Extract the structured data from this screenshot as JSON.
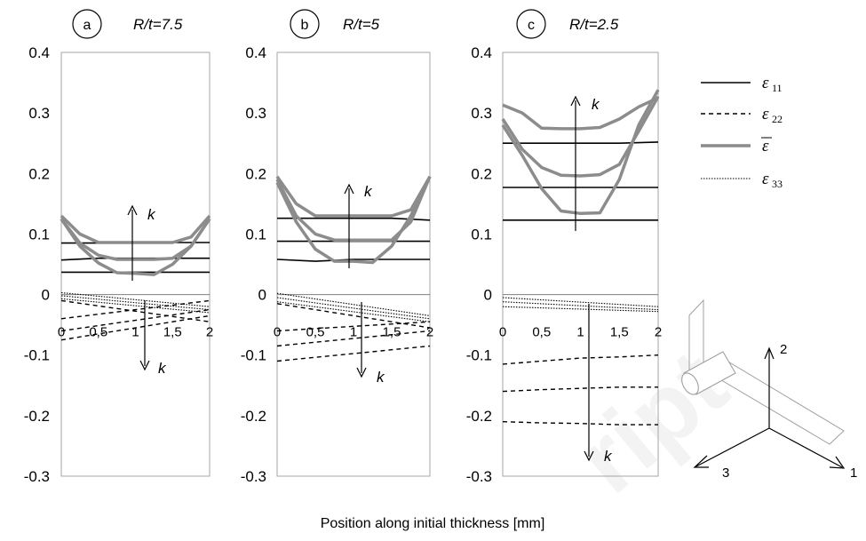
{
  "chart_data": [
    {
      "type": "line",
      "letter": "a",
      "title": "R/t=7.5",
      "xticks": [
        "0",
        "0,5",
        "1",
        "1,5",
        "2"
      ],
      "yticks": [
        "0.4",
        "0.3",
        "0.2",
        "0.1",
        "0",
        "-0.1",
        "-0.2",
        "-0.3"
      ],
      "xlim": [
        0,
        2
      ],
      "ylim": [
        -0.3,
        0.4
      ],
      "k_label": "k",
      "series": [
        {
          "name": "ε11",
          "x": [
            0,
            0.5,
            1,
            1.5,
            2
          ],
          "values": [
            0.085,
            0.085,
            0.085,
            0.086,
            0.086
          ]
        },
        {
          "name": "ε11",
          "x": [
            0,
            0.5,
            1,
            1.5,
            2
          ],
          "values": [
            0.057,
            0.06,
            0.06,
            0.06,
            0.06
          ]
        },
        {
          "name": "ε11",
          "x": [
            0,
            0.5,
            1,
            1.5,
            2
          ],
          "values": [
            0.037,
            0.037,
            0.037,
            0.037,
            0.037
          ]
        },
        {
          "name": "ε̄",
          "x": [
            0,
            0.25,
            0.5,
            0.75,
            1,
            1.25,
            1.5,
            1.75,
            2
          ],
          "values": [
            0.13,
            0.1,
            0.086,
            0.086,
            0.086,
            0.086,
            0.086,
            0.095,
            0.13
          ]
        },
        {
          "name": "ε̄",
          "x": [
            0,
            0.25,
            0.5,
            0.75,
            1,
            1.25,
            1.5,
            1.75,
            2
          ],
          "values": [
            0.125,
            0.085,
            0.065,
            0.058,
            0.058,
            0.058,
            0.06,
            0.08,
            0.125
          ]
        },
        {
          "name": "ε̄",
          "x": [
            0,
            0.25,
            0.5,
            0.75,
            1,
            1.25,
            1.5,
            1.75,
            2
          ],
          "values": [
            0.125,
            0.08,
            0.052,
            0.036,
            0.035,
            0.033,
            0.05,
            0.08,
            0.125
          ]
        },
        {
          "name": "ε22",
          "x": [
            0,
            2
          ],
          "values": [
            -0.01,
            -0.045
          ]
        },
        {
          "name": "ε22",
          "x": [
            0,
            2
          ],
          "values": [
            -0.04,
            -0.01
          ]
        },
        {
          "name": "ε22",
          "x": [
            0,
            2
          ],
          "values": [
            -0.06,
            -0.025
          ]
        },
        {
          "name": "ε22",
          "x": [
            0,
            2
          ],
          "values": [
            -0.075,
            -0.035
          ]
        },
        {
          "name": "ε33",
          "x": [
            0,
            2
          ],
          "values": [
            0.003,
            -0.02
          ]
        },
        {
          "name": "ε33",
          "x": [
            0,
            2
          ],
          "values": [
            -0.002,
            -0.025
          ]
        },
        {
          "name": "ε33",
          "x": [
            0,
            2
          ],
          "values": [
            -0.007,
            -0.03
          ]
        }
      ]
    },
    {
      "type": "line",
      "letter": "b",
      "title": "R/t=5",
      "xticks": [
        "0",
        "0,5",
        "1",
        "1,5",
        "2"
      ],
      "yticks": [
        "0.4",
        "0.3",
        "0.2",
        "0.1",
        "0",
        "-0.1",
        "-0.2",
        "-0.3"
      ],
      "xlim": [
        0,
        2
      ],
      "ylim": [
        -0.3,
        0.4
      ],
      "k_label": "k",
      "series": [
        {
          "name": "ε11",
          "x": [
            0,
            0.5,
            1,
            1.5,
            2
          ],
          "values": [
            0.126,
            0.126,
            0.126,
            0.126,
            0.123
          ]
        },
        {
          "name": "ε11",
          "x": [
            0,
            0.5,
            1,
            1.5,
            2
          ],
          "values": [
            0.088,
            0.088,
            0.088,
            0.088,
            0.088
          ]
        },
        {
          "name": "ε11",
          "x": [
            0,
            0.5,
            1,
            1.5,
            2
          ],
          "values": [
            0.058,
            0.055,
            0.058,
            0.058,
            0.058
          ]
        },
        {
          "name": "ε̄",
          "x": [
            0,
            0.25,
            0.5,
            0.75,
            1,
            1.25,
            1.5,
            1.75,
            2
          ],
          "values": [
            0.195,
            0.15,
            0.13,
            0.13,
            0.13,
            0.13,
            0.13,
            0.14,
            0.195
          ]
        },
        {
          "name": "ε̄",
          "x": [
            0,
            0.25,
            0.5,
            0.75,
            1,
            1.25,
            1.5,
            1.75,
            2
          ],
          "values": [
            0.19,
            0.13,
            0.1,
            0.09,
            0.09,
            0.09,
            0.09,
            0.12,
            0.195
          ]
        },
        {
          "name": "ε̄",
          "x": [
            0,
            0.25,
            0.5,
            0.75,
            1,
            1.25,
            1.5,
            1.75,
            2
          ],
          "values": [
            0.185,
            0.12,
            0.075,
            0.055,
            0.055,
            0.053,
            0.08,
            0.13,
            0.195
          ]
        },
        {
          "name": "ε22",
          "x": [
            0,
            2
          ],
          "values": [
            -0.015,
            -0.055
          ]
        },
        {
          "name": "ε22",
          "x": [
            0,
            2
          ],
          "values": [
            -0.06,
            -0.045
          ]
        },
        {
          "name": "ε22",
          "x": [
            0,
            2
          ],
          "values": [
            -0.085,
            -0.06
          ]
        },
        {
          "name": "ε22",
          "x": [
            0,
            2
          ],
          "values": [
            -0.11,
            -0.085
          ]
        },
        {
          "name": "ε33",
          "x": [
            0,
            2
          ],
          "values": [
            0.002,
            -0.035
          ]
        },
        {
          "name": "ε33",
          "x": [
            0,
            2
          ],
          "values": [
            -0.005,
            -0.04
          ]
        },
        {
          "name": "ε33",
          "x": [
            0,
            2
          ],
          "values": [
            -0.012,
            -0.045
          ]
        }
      ]
    },
    {
      "type": "line",
      "letter": "c",
      "title": "R/t=2.5",
      "xticks": [
        "0",
        "0,5",
        "1",
        "1,5",
        "2"
      ],
      "yticks": [
        "0.4",
        "0.3",
        "0.2",
        "0.1",
        "0",
        "-0.1",
        "-0.2",
        "-0.3"
      ],
      "xlim": [
        0,
        2
      ],
      "ylim": [
        -0.3,
        0.4
      ],
      "k_label": "k",
      "series": [
        {
          "name": "ε11",
          "x": [
            0,
            0.5,
            1,
            1.5,
            2
          ],
          "values": [
            0.25,
            0.25,
            0.25,
            0.25,
            0.252
          ]
        },
        {
          "name": "ε11",
          "x": [
            0,
            0.5,
            1,
            1.5,
            2
          ],
          "values": [
            0.177,
            0.177,
            0.177,
            0.177,
            0.177
          ]
        },
        {
          "name": "ε11",
          "x": [
            0,
            0.5,
            1,
            1.5,
            2
          ],
          "values": [
            0.123,
            0.123,
            0.123,
            0.123,
            0.123
          ]
        },
        {
          "name": "ε̄",
          "x": [
            0,
            0.25,
            0.5,
            0.75,
            1,
            1.25,
            1.5,
            1.75,
            2
          ],
          "values": [
            0.313,
            0.3,
            0.275,
            0.274,
            0.274,
            0.276,
            0.29,
            0.31,
            0.325
          ]
        },
        {
          "name": "ε̄",
          "x": [
            0,
            0.25,
            0.5,
            0.75,
            1,
            1.25,
            1.5,
            1.75,
            2
          ],
          "values": [
            0.29,
            0.24,
            0.21,
            0.197,
            0.196,
            0.198,
            0.215,
            0.27,
            0.327
          ]
        },
        {
          "name": "ε̄",
          "x": [
            0,
            0.25,
            0.5,
            0.75,
            1,
            1.25,
            1.5,
            1.75,
            2
          ],
          "values": [
            0.28,
            0.23,
            0.175,
            0.138,
            0.134,
            0.135,
            0.19,
            0.28,
            0.338
          ]
        },
        {
          "name": "ε22",
          "x": [
            0,
            0.5,
            1,
            1.5,
            2
          ],
          "values": [
            -0.115,
            -0.11,
            -0.105,
            -0.103,
            -0.1
          ]
        },
        {
          "name": "ε22",
          "x": [
            0,
            0.5,
            1,
            1.5,
            2
          ],
          "values": [
            -0.16,
            -0.157,
            -0.155,
            -0.153,
            -0.153
          ]
        },
        {
          "name": "ε22",
          "x": [
            0,
            0.5,
            1,
            1.5,
            2
          ],
          "values": [
            -0.21,
            -0.212,
            -0.213,
            -0.215,
            -0.215
          ]
        },
        {
          "name": "ε33",
          "x": [
            0,
            2
          ],
          "values": [
            -0.005,
            -0.02
          ]
        },
        {
          "name": "ε33",
          "x": [
            0,
            2
          ],
          "values": [
            -0.012,
            -0.025
          ]
        },
        {
          "name": "ε33",
          "x": [
            0,
            2
          ],
          "values": [
            -0.02,
            -0.028
          ]
        }
      ]
    }
  ],
  "legend": {
    "items": [
      {
        "symbol": "ε",
        "sub": "11",
        "bar": false,
        "style": "solid"
      },
      {
        "symbol": "ε",
        "sub": "22",
        "bar": false,
        "style": "dashed"
      },
      {
        "symbol": "ε",
        "sub": "",
        "bar": true,
        "style": "gray"
      },
      {
        "symbol": "ε",
        "sub": "33",
        "bar": false,
        "style": "dotted"
      }
    ]
  },
  "xlabel": "Position along initial thickness [mm]",
  "axes_diagram": {
    "labels": [
      "1",
      "2",
      "3"
    ]
  },
  "colors": {
    "solid": "#000000",
    "gray": "#8c8c8c"
  }
}
